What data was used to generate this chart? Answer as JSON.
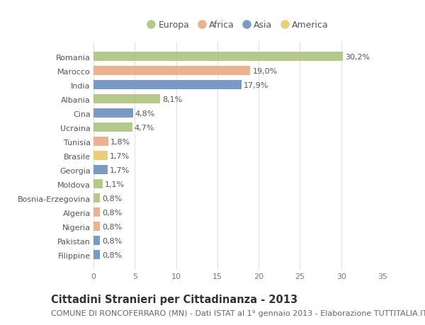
{
  "countries": [
    "Romania",
    "Marocco",
    "India",
    "Albania",
    "Cina",
    "Ucraina",
    "Tunisia",
    "Brasile",
    "Georgia",
    "Moldova",
    "Bosnia-Erzegovina",
    "Algeria",
    "Nigeria",
    "Pakistan",
    "Filippine"
  ],
  "values": [
    30.2,
    19.0,
    17.9,
    8.1,
    4.8,
    4.7,
    1.8,
    1.7,
    1.7,
    1.1,
    0.8,
    0.8,
    0.8,
    0.8,
    0.8
  ],
  "labels": [
    "30,2%",
    "19,0%",
    "17,9%",
    "8,1%",
    "4,8%",
    "4,7%",
    "1,8%",
    "1,7%",
    "1,7%",
    "1,1%",
    "0,8%",
    "0,8%",
    "0,8%",
    "0,8%",
    "0,8%"
  ],
  "continents": [
    "Europa",
    "Africa",
    "Asia",
    "Europa",
    "Asia",
    "Europa",
    "Africa",
    "America",
    "Asia",
    "Europa",
    "Europa",
    "Africa",
    "Africa",
    "Asia",
    "Asia"
  ],
  "colors": {
    "Europa": "#adc47d",
    "Africa": "#e8aa82",
    "Asia": "#6b8fbf",
    "America": "#e8c96a"
  },
  "legend_order": [
    "Europa",
    "Africa",
    "Asia",
    "America"
  ],
  "title": "Cittadini Stranieri per Cittadinanza - 2013",
  "subtitle": "COMUNE DI RONCOFERRARO (MN) - Dati ISTAT al 1° gennaio 2013 - Elaborazione TUTTITALIA.IT",
  "xlim": [
    0,
    35
  ],
  "xticks": [
    0,
    5,
    10,
    15,
    20,
    25,
    30,
    35
  ],
  "bg_color": "#ffffff",
  "grid_color": "#e0e0e0",
  "bar_height": 0.65,
  "title_fontsize": 10.5,
  "subtitle_fontsize": 8,
  "label_fontsize": 8,
  "tick_fontsize": 8,
  "legend_fontsize": 9
}
